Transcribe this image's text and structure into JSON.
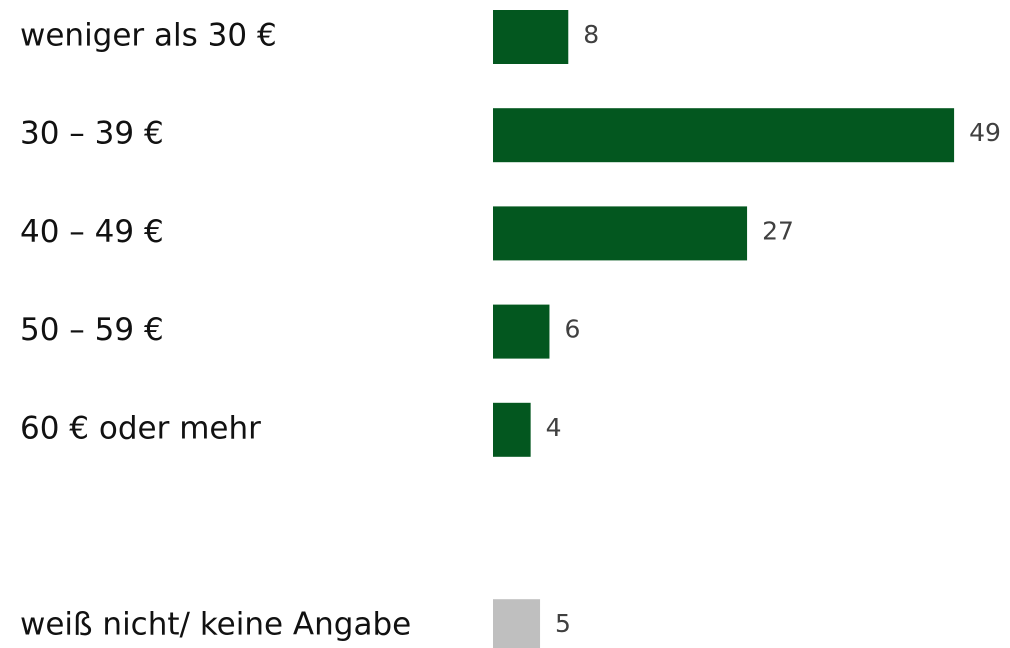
{
  "chart_data": {
    "type": "bar",
    "orientation": "horizontal",
    "categories": [
      "weniger als 30 €",
      "30 – 39 €",
      "40 – 49 €",
      "50 – 59 €",
      "60 € oder mehr",
      "weiß nicht/ keine Angabe"
    ],
    "values": [
      8,
      49,
      27,
      6,
      4,
      5
    ],
    "colors": [
      "#03571f",
      "#03571f",
      "#03571f",
      "#03571f",
      "#03571f",
      "#bfbfbf"
    ]
  }
}
